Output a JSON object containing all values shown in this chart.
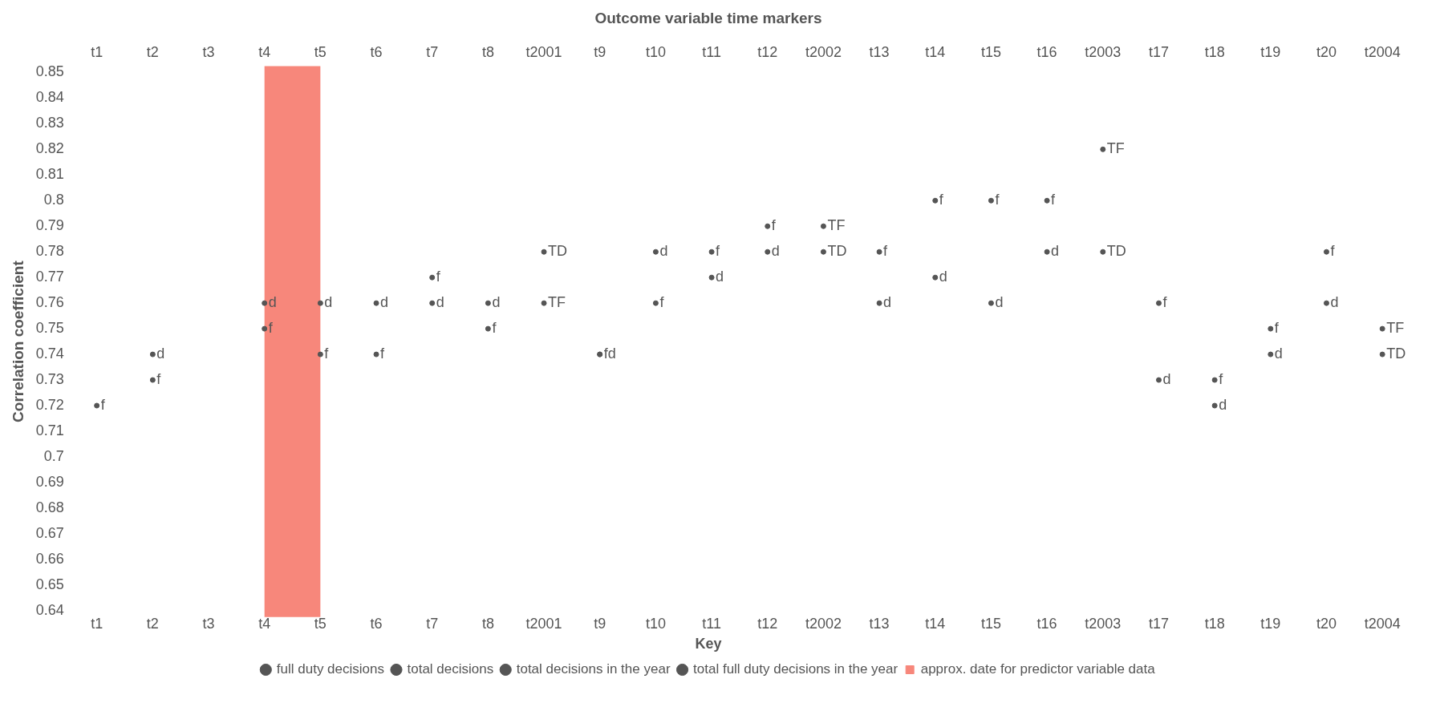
{
  "chart_data": {
    "type": "scatter",
    "title": "Outcome variable time markers",
    "ylabel": "Correlation coefficient",
    "legend_title": "Key",
    "legend": "bottom",
    "grid": false,
    "categories": [
      "t1",
      "t2",
      "t3",
      "t4",
      "t5",
      "t6",
      "t7",
      "t8",
      "t2001",
      "t9",
      "t10",
      "t11",
      "t12",
      "t2002",
      "t13",
      "t14",
      "t15",
      "t16",
      "t2003",
      "t17",
      "t18",
      "t19",
      "t20",
      "t2004"
    ],
    "ylim": [
      0.64,
      0.85
    ],
    "yticks": [
      0.64,
      0.65,
      0.66,
      0.67,
      0.68,
      0.69,
      0.7,
      0.71,
      0.72,
      0.73,
      0.74,
      0.75,
      0.76,
      0.77,
      0.78,
      0.79,
      0.8,
      0.81,
      0.82,
      0.83,
      0.84,
      0.85
    ],
    "series": [
      {
        "name": "full duty decisions",
        "color": "#555555",
        "values": [
          0.72,
          0.73,
          null,
          0.75,
          0.74,
          0.74,
          0.77,
          0.75,
          null,
          0.74,
          0.76,
          0.78,
          0.79,
          null,
          0.78,
          0.8,
          0.8,
          0.8,
          null,
          0.76,
          0.73,
          0.75,
          0.78,
          null
        ],
        "value_labels": [
          "f",
          "f",
          null,
          "f",
          "f",
          "f",
          "f",
          "f",
          null,
          "f",
          "f",
          "f",
          "f",
          null,
          "f",
          "f",
          "f",
          "f",
          null,
          "f",
          "f",
          "f",
          "f",
          null
        ]
      },
      {
        "name": "total decisions",
        "color": "#555555",
        "values": [
          null,
          0.74,
          null,
          0.76,
          0.76,
          0.76,
          0.76,
          0.76,
          null,
          0.74,
          0.78,
          0.77,
          0.78,
          null,
          0.76,
          0.77,
          0.76,
          0.78,
          null,
          0.73,
          0.72,
          0.74,
          0.76,
          null
        ],
        "value_labels": [
          null,
          "d",
          null,
          "d",
          "d",
          "d",
          "d",
          "d",
          null,
          "d",
          "d",
          "d",
          "d",
          null,
          "d",
          "d",
          "d",
          "d",
          null,
          "d",
          "d",
          "d",
          "d",
          null
        ]
      },
      {
        "name": "total decisions in the year",
        "color": "#555555",
        "values": [
          null,
          null,
          null,
          null,
          null,
          null,
          null,
          null,
          0.78,
          null,
          null,
          null,
          null,
          0.78,
          null,
          null,
          null,
          null,
          0.78,
          null,
          null,
          null,
          null,
          0.74
        ],
        "value_labels": [
          null,
          null,
          null,
          null,
          null,
          null,
          null,
          null,
          "TD",
          null,
          null,
          null,
          null,
          "TD",
          null,
          null,
          null,
          null,
          "TD",
          null,
          null,
          null,
          null,
          "TD"
        ]
      },
      {
        "name": "total full duty decisions in the year",
        "color": "#555555",
        "values": [
          null,
          null,
          null,
          null,
          null,
          null,
          null,
          null,
          0.76,
          null,
          null,
          null,
          null,
          0.79,
          null,
          null,
          null,
          null,
          0.82,
          null,
          null,
          null,
          null,
          0.75
        ],
        "value_labels": [
          null,
          null,
          null,
          null,
          null,
          null,
          null,
          null,
          "TF",
          null,
          null,
          null,
          null,
          "TF",
          null,
          null,
          null,
          null,
          "TF",
          null,
          null,
          null,
          null,
          "TF"
        ]
      }
    ],
    "bands": [
      {
        "axis": "x",
        "from": "t4",
        "to": "t5",
        "label": "approx. date for predictor variable data",
        "color": "#f7877b"
      }
    ]
  }
}
